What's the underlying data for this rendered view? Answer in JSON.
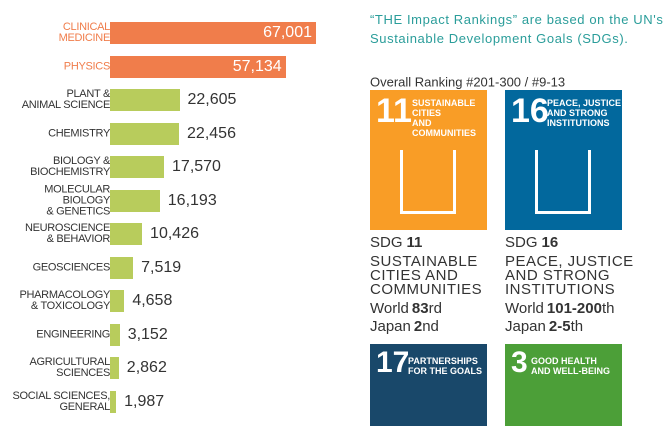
{
  "chart_data": {
    "type": "bar",
    "orientation": "horizontal",
    "categories": [
      "CLINICAL\nMEDICINE",
      "PHYSICS",
      "PLANT &\nANIMAL SCIENCE",
      "CHEMISTRY",
      "BIOLOGY &\nBIOCHEMISTRY",
      "MOLECULAR BIOLOGY\n& GENETICS",
      "NEUROSCIENCE\n& BEHAVIOR",
      "GEOSCIENCES",
      "PHARMACOLOGY\n& TOXICOLOGY",
      "ENGINEERING",
      "AGRICULTURAL\nSCIENCES",
      "SOCIAL SCIENCES,\nGENERAL"
    ],
    "values": [
      67001,
      57134,
      22605,
      22456,
      17570,
      16193,
      10426,
      7519,
      4658,
      3152,
      2862,
      1987
    ],
    "value_labels": [
      "67,001",
      "57,134",
      "22,605",
      "22,456",
      "17,570",
      "16,193",
      "10,426",
      "7,519",
      "4,658",
      "3,152",
      "2,862",
      "1,987"
    ],
    "colors": [
      "#f07d4b",
      "#f07d4b",
      "#b8cc5c",
      "#b8cc5c",
      "#b8cc5c",
      "#b8cc5c",
      "#b8cc5c",
      "#b8cc5c",
      "#b8cc5c",
      "#b8cc5c",
      "#b8cc5c",
      "#b8cc5c"
    ]
  },
  "intro": "“THE Impact Rankings” are based on the UN's Sustainable Development Goals (SDGs).",
  "overall": "Overall Ranking #201-300 / #9-13",
  "sdgs": [
    {
      "color": "#f99d26",
      "tile_title": "SUSTAINABLE CITIES\nAND COMMUNITIES",
      "label": "SDG",
      "number": "11",
      "name": "SUSTAINABLE\nCITIES AND\nCOMMUNITIES",
      "world": "World",
      "world_rank": "83",
      "world_suffix": "rd",
      "japan": "Japan",
      "japan_rank": "2",
      "japan_suffix": "nd"
    },
    {
      "color": "#02689d",
      "tile_title": "PEACE, JUSTICE\nAND STRONG\nINSTITUTIONS",
      "label": "SDG",
      "number": "16",
      "name": "PEACE, JUSTICE\nAND STRONG\nINSTITUTIONS",
      "world": "World",
      "world_rank": "101-200",
      "world_suffix": "th",
      "japan": "Japan",
      "japan_rank": "2-5",
      "japan_suffix": "th"
    }
  ],
  "more_tiles": [
    {
      "color": "#19486a",
      "number": "17",
      "title": "PARTNERSHIPS\nFOR THE GOALS"
    },
    {
      "color": "#4c9f38",
      "number": "3",
      "title": "GOOD HEALTH\nAND WELL-BEING"
    }
  ]
}
